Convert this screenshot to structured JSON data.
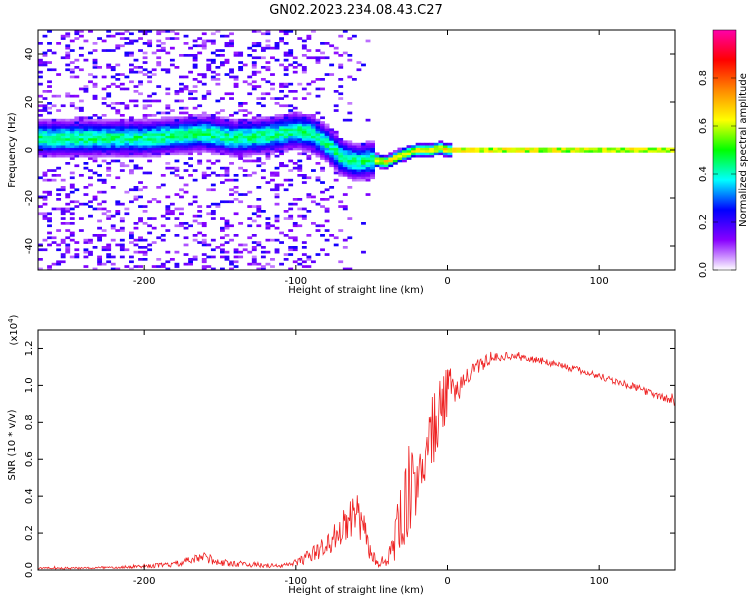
{
  "figure_title": "GN02.2023.234.08.43.C27",
  "chart_data": [
    {
      "type": "heatmap",
      "name": "spectrogram",
      "xlabel": "Height of straight line (km)",
      "ylabel": "Frequency (Hz)",
      "xlim": [
        -270,
        150
      ],
      "ylim": [
        -50,
        50
      ],
      "xticks": [
        -200,
        -100,
        0,
        100
      ],
      "yticks": [
        -40,
        -20,
        0,
        20,
        40
      ],
      "colorbar": {
        "label": "Normalized spectral amplitude",
        "range": [
          0,
          1
        ],
        "ticks": [
          "0.0",
          "0.2",
          "0.4",
          "0.6",
          "0.8"
        ],
        "colormap": [
          "#ffffff",
          "#8800ff",
          "#0000ff",
          "#00ffff",
          "#00ff00",
          "#ffff00",
          "#ff8800",
          "#ff0000",
          "#ff00aa"
        ]
      },
      "ridge": {
        "x": [
          -200,
          -180,
          -160,
          -140,
          -120,
          -100,
          -90,
          -80,
          -70,
          -60,
          -50,
          -40,
          -30,
          -20,
          -10,
          -5,
          0,
          50,
          100,
          150
        ],
        "y": [
          5,
          6,
          7,
          5,
          6,
          8,
          7,
          3,
          -3,
          -5,
          -4,
          -5,
          -2,
          0,
          0,
          1,
          0,
          0,
          0,
          0
        ]
      }
    },
    {
      "type": "line",
      "name": "snr",
      "xlabel": "Height of straight line (km)",
      "ylabel": "SNR (10 * v/v)",
      "y_multiplier": "(x10^4)",
      "xlim": [
        -270,
        150
      ],
      "ylim": [
        0,
        1.3
      ],
      "xticks": [
        -200,
        -100,
        0,
        100
      ],
      "yticks": [
        "0.0",
        "0.2",
        "0.4",
        "0.6",
        "0.8",
        "1.0",
        "1.2"
      ],
      "color": "#ee2222",
      "series": [
        {
          "x": [
            -270,
            -240,
            -200,
            -180,
            -160,
            -150,
            -130,
            -110,
            -100,
            -90,
            -80,
            -70,
            -60,
            -55,
            -50,
            -45,
            -40,
            -35,
            -30,
            -20,
            -10,
            0,
            10,
            20,
            30,
            40,
            50,
            70,
            100,
            120,
            150
          ],
          "y": [
            0.01,
            0.01,
            0.02,
            0.03,
            0.07,
            0.04,
            0.03,
            0.02,
            0.04,
            0.08,
            0.13,
            0.22,
            0.3,
            0.2,
            0.08,
            0.03,
            0.05,
            0.15,
            0.3,
            0.5,
            0.75,
            0.95,
            1.02,
            1.1,
            1.15,
            1.16,
            1.15,
            1.12,
            1.05,
            1.0,
            0.91
          ]
        }
      ],
      "noise": [
        0.005,
        0.005,
        0.01,
        0.015,
        0.03,
        0.02,
        0.015,
        0.01,
        0.02,
        0.04,
        0.06,
        0.09,
        0.12,
        0.1,
        0.04,
        0.02,
        0.03,
        0.12,
        0.2,
        0.22,
        0.2,
        0.15,
        0.06,
        0.04,
        0.025,
        0.02,
        0.02,
        0.02,
        0.02,
        0.02,
        0.02
      ]
    }
  ]
}
